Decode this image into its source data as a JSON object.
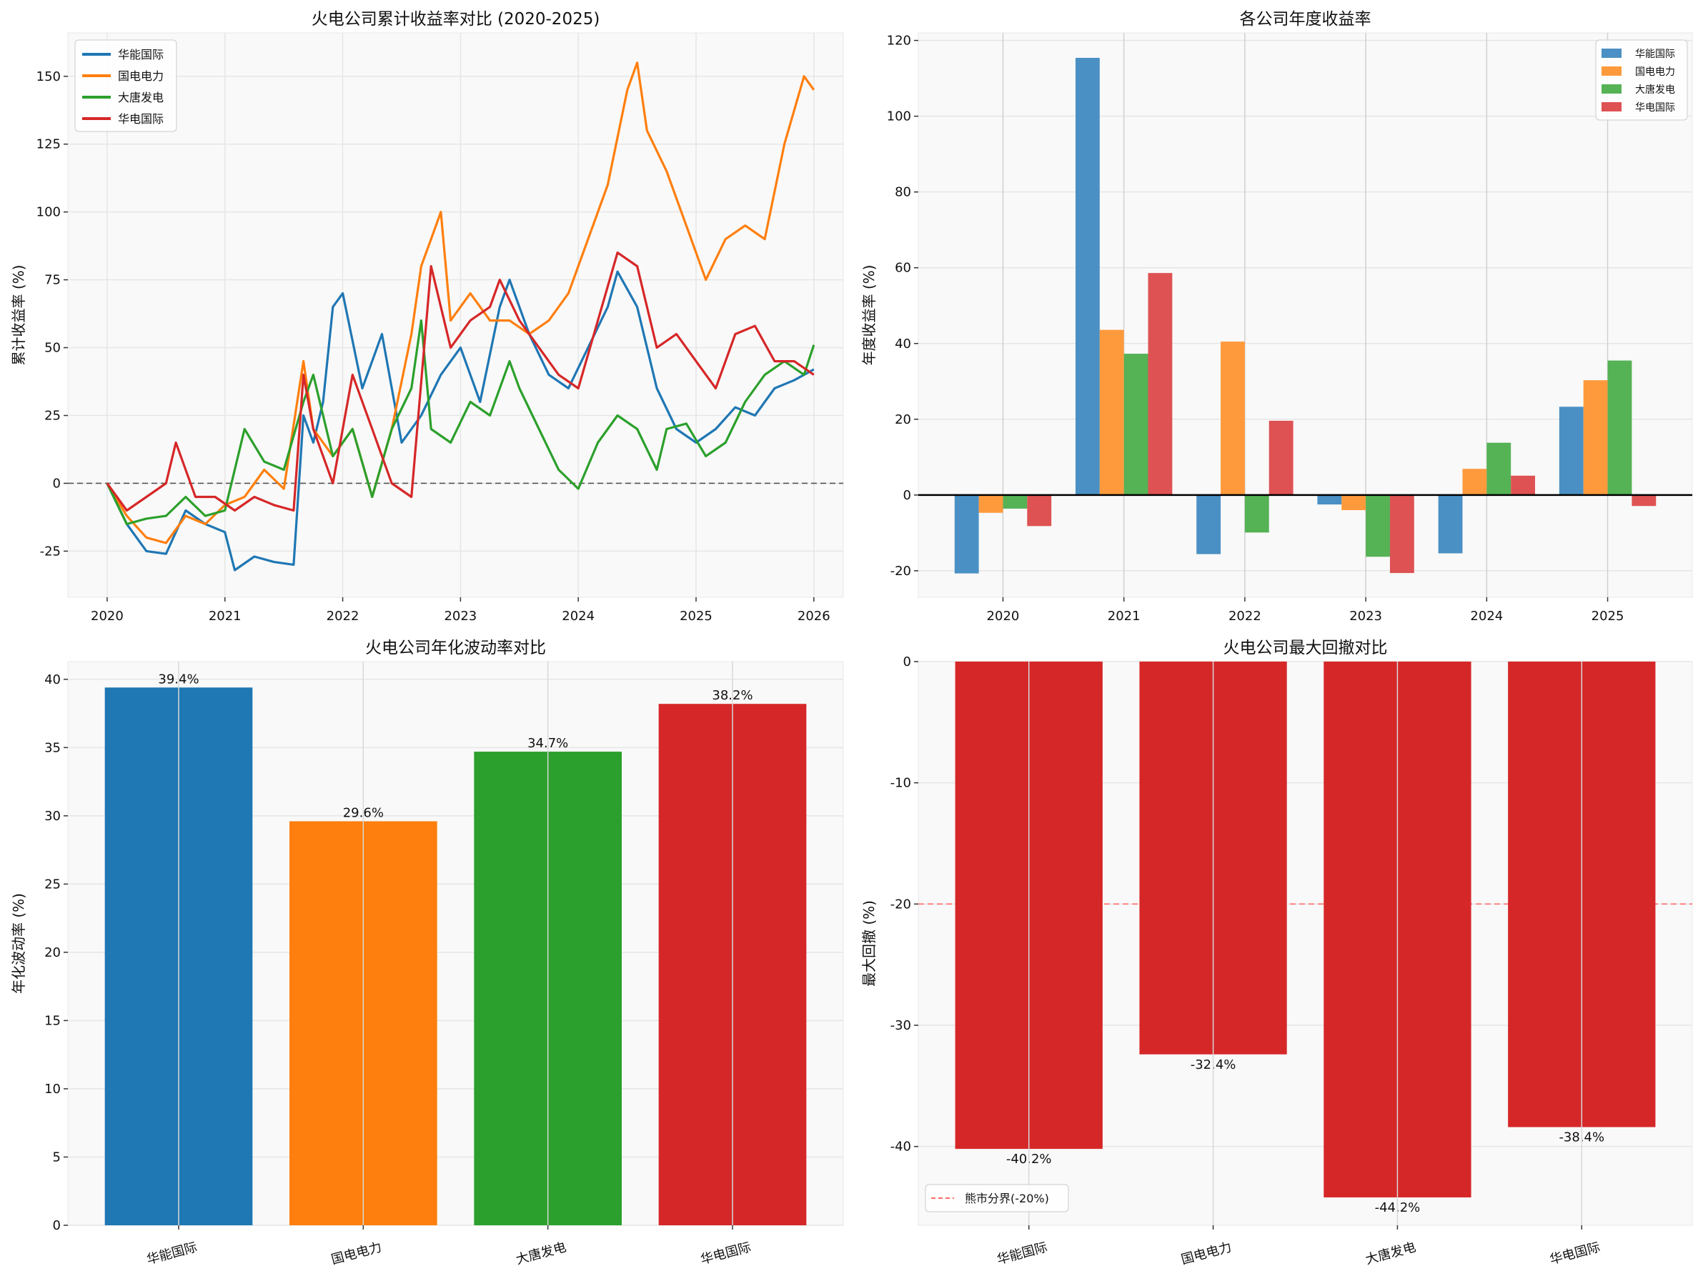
{
  "chart_data": [
    {
      "type": "line",
      "title": "火电公司累计收益率对比 (2020-2025)",
      "xlabel": "",
      "ylabel": "累计收益率 (%)",
      "xlim": [
        "2019-09",
        "2026-04"
      ],
      "ylim": [
        -42,
        166
      ],
      "xticks": [
        "2020",
        "2021",
        "2022",
        "2023",
        "2024",
        "2025",
        "2026"
      ],
      "yticks": [
        -25,
        0,
        25,
        50,
        75,
        100,
        125,
        150
      ],
      "grid": true,
      "legend_position": "top-left",
      "reference_line": {
        "y": 0,
        "style": "dashed",
        "color": "#555555"
      },
      "series": [
        {
          "name": "华能国际",
          "color": "#1f77b4",
          "points": [
            [
              "2020-01",
              0
            ],
            [
              "2020-03",
              -15
            ],
            [
              "2020-05",
              -25
            ],
            [
              "2020-07",
              -26
            ],
            [
              "2020-09",
              -10
            ],
            [
              "2020-11",
              -15
            ],
            [
              "2021-01",
              -18
            ],
            [
              "2021-02",
              -32
            ],
            [
              "2021-04",
              -27
            ],
            [
              "2021-06",
              -29
            ],
            [
              "2021-08",
              -30
            ],
            [
              "2021-09",
              25
            ],
            [
              "2021-10",
              15
            ],
            [
              "2021-11",
              30
            ],
            [
              "2021-12",
              65
            ],
            [
              "2022-01",
              70
            ],
            [
              "2022-03",
              35
            ],
            [
              "2022-05",
              55
            ],
            [
              "2022-07",
              15
            ],
            [
              "2022-09",
              25
            ],
            [
              "2022-11",
              40
            ],
            [
              "2023-01",
              50
            ],
            [
              "2023-03",
              30
            ],
            [
              "2023-05",
              65
            ],
            [
              "2023-06",
              75
            ],
            [
              "2023-08",
              55
            ],
            [
              "2023-10",
              40
            ],
            [
              "2023-12",
              35
            ],
            [
              "2024-02",
              50
            ],
            [
              "2024-04",
              65
            ],
            [
              "2024-05",
              78
            ],
            [
              "2024-07",
              65
            ],
            [
              "2024-09",
              35
            ],
            [
              "2024-11",
              20
            ],
            [
              "2025-01",
              15
            ],
            [
              "2025-03",
              20
            ],
            [
              "2025-05",
              28
            ],
            [
              "2025-07",
              25
            ],
            [
              "2025-09",
              35
            ],
            [
              "2025-11",
              38
            ],
            [
              "2026-01",
              42
            ]
          ]
        },
        {
          "name": "国电电力",
          "color": "#ff7f0e",
          "points": [
            [
              "2020-01",
              0
            ],
            [
              "2020-03",
              -12
            ],
            [
              "2020-05",
              -20
            ],
            [
              "2020-07",
              -22
            ],
            [
              "2020-09",
              -12
            ],
            [
              "2020-11",
              -15
            ],
            [
              "2021-01",
              -8
            ],
            [
              "2021-03",
              -5
            ],
            [
              "2021-05",
              5
            ],
            [
              "2021-07",
              -2
            ],
            [
              "2021-09",
              45
            ],
            [
              "2021-10",
              20
            ],
            [
              "2021-12",
              10
            ],
            [
              "2022-02",
              20
            ],
            [
              "2022-04",
              -5
            ],
            [
              "2022-06",
              20
            ],
            [
              "2022-08",
              55
            ],
            [
              "2022-09",
              80
            ],
            [
              "2022-10",
              90
            ],
            [
              "2022-11",
              100
            ],
            [
              "2022-12",
              60
            ],
            [
              "2023-02",
              70
            ],
            [
              "2023-04",
              60
            ],
            [
              "2023-06",
              60
            ],
            [
              "2023-08",
              55
            ],
            [
              "2023-10",
              60
            ],
            [
              "2023-12",
              70
            ],
            [
              "2024-02",
              90
            ],
            [
              "2024-04",
              110
            ],
            [
              "2024-06",
              145
            ],
            [
              "2024-07",
              155
            ],
            [
              "2024-08",
              130
            ],
            [
              "2024-10",
              115
            ],
            [
              "2024-12",
              95
            ],
            [
              "2025-02",
              75
            ],
            [
              "2025-04",
              90
            ],
            [
              "2025-06",
              95
            ],
            [
              "2025-08",
              90
            ],
            [
              "2025-10",
              125
            ],
            [
              "2025-12",
              150
            ],
            [
              "2026-01",
              145
            ]
          ]
        },
        {
          "name": "大唐发电",
          "color": "#2ca02c",
          "points": [
            [
              "2020-01",
              0
            ],
            [
              "2020-03",
              -15
            ],
            [
              "2020-05",
              -13
            ],
            [
              "2020-07",
              -12
            ],
            [
              "2020-09",
              -5
            ],
            [
              "2020-11",
              -12
            ],
            [
              "2021-01",
              -10
            ],
            [
              "2021-03",
              20
            ],
            [
              "2021-05",
              8
            ],
            [
              "2021-07",
              5
            ],
            [
              "2021-09",
              30
            ],
            [
              "2021-10",
              40
            ],
            [
              "2021-12",
              10
            ],
            [
              "2022-02",
              20
            ],
            [
              "2022-04",
              -5
            ],
            [
              "2022-06",
              20
            ],
            [
              "2022-08",
              35
            ],
            [
              "2022-09",
              60
            ],
            [
              "2022-10",
              20
            ],
            [
              "2022-12",
              15
            ],
            [
              "2023-02",
              30
            ],
            [
              "2023-04",
              25
            ],
            [
              "2023-06",
              45
            ],
            [
              "2023-07",
              35
            ],
            [
              "2023-09",
              20
            ],
            [
              "2023-11",
              5
            ],
            [
              "2024-01",
              -2
            ],
            [
              "2024-03",
              15
            ],
            [
              "2024-05",
              25
            ],
            [
              "2024-07",
              20
            ],
            [
              "2024-09",
              5
            ],
            [
              "2024-10",
              20
            ],
            [
              "2024-12",
              22
            ],
            [
              "2025-02",
              10
            ],
            [
              "2025-04",
              15
            ],
            [
              "2025-06",
              30
            ],
            [
              "2025-08",
              40
            ],
            [
              "2025-10",
              45
            ],
            [
              "2025-12",
              40
            ],
            [
              "2026-01",
              51
            ]
          ]
        },
        {
          "name": "华电国际",
          "color": "#d62728",
          "points": [
            [
              "2020-01",
              0
            ],
            [
              "2020-03",
              -10
            ],
            [
              "2020-05",
              -5
            ],
            [
              "2020-07",
              0
            ],
            [
              "2020-08",
              15
            ],
            [
              "2020-10",
              -5
            ],
            [
              "2020-12",
              -5
            ],
            [
              "2021-02",
              -10
            ],
            [
              "2021-04",
              -5
            ],
            [
              "2021-06",
              -8
            ],
            [
              "2021-08",
              -10
            ],
            [
              "2021-09",
              40
            ],
            [
              "2021-10",
              20
            ],
            [
              "2021-12",
              0
            ],
            [
              "2022-02",
              40
            ],
            [
              "2022-04",
              20
            ],
            [
              "2022-06",
              0
            ],
            [
              "2022-08",
              -5
            ],
            [
              "2022-10",
              80
            ],
            [
              "2022-12",
              50
            ],
            [
              "2023-02",
              60
            ],
            [
              "2023-04",
              65
            ],
            [
              "2023-05",
              75
            ],
            [
              "2023-07",
              60
            ],
            [
              "2023-09",
              50
            ],
            [
              "2023-11",
              40
            ],
            [
              "2024-01",
              35
            ],
            [
              "2024-03",
              60
            ],
            [
              "2024-05",
              85
            ],
            [
              "2024-07",
              80
            ],
            [
              "2024-09",
              50
            ],
            [
              "2024-11",
              55
            ],
            [
              "2025-01",
              45
            ],
            [
              "2025-03",
              35
            ],
            [
              "2025-05",
              55
            ],
            [
              "2025-07",
              58
            ],
            [
              "2025-09",
              45
            ],
            [
              "2025-11",
              45
            ],
            [
              "2026-01",
              40
            ]
          ]
        }
      ]
    },
    {
      "type": "bar",
      "title": "各公司年度收益率",
      "xlabel": "",
      "ylabel": "年度收益率 (%)",
      "ylim": [
        -27,
        122
      ],
      "yticks": [
        -20,
        0,
        20,
        40,
        60,
        80,
        100,
        120
      ],
      "grid": true,
      "legend_position": "top-right",
      "categories": [
        "2020",
        "2021",
        "2022",
        "2023",
        "2024",
        "2025"
      ],
      "series": [
        {
          "name": "华能国际",
          "color": "#4a90c4",
          "values": [
            -20.7,
            115.4,
            -15.6,
            -2.5,
            -15.4,
            23.3
          ]
        },
        {
          "name": "国电电力",
          "color": "#ff9a3c",
          "values": [
            -4.7,
            43.6,
            40.5,
            -4.0,
            6.9,
            30.3
          ]
        },
        {
          "name": "大唐发电",
          "color": "#55b255",
          "values": [
            -3.6,
            37.3,
            -9.9,
            -16.3,
            13.8,
            35.5
          ]
        },
        {
          "name": "华电国际",
          "color": "#de5253",
          "values": [
            -8.2,
            58.6,
            19.6,
            -20.6,
            5.1,
            -2.9
          ]
        }
      ]
    },
    {
      "type": "bar",
      "title": "火电公司年化波动率对比",
      "xlabel": "",
      "ylabel": "年化波动率 (%)",
      "ylim": [
        0,
        41.3
      ],
      "yticks": [
        0,
        5,
        10,
        15,
        20,
        25,
        30,
        35,
        40
      ],
      "grid": true,
      "categories": [
        "华能国际",
        "国电电力",
        "大唐发电",
        "华电国际"
      ],
      "colors": [
        "#1f77b4",
        "#ff7f0e",
        "#2ca02c",
        "#d62728"
      ],
      "values": [
        39.4,
        29.6,
        34.7,
        38.2
      ],
      "data_labels": [
        "39.4%",
        "29.6%",
        "34.7%",
        "38.2%"
      ]
    },
    {
      "type": "bar",
      "title": "火电公司最大回撤对比",
      "xlabel": "",
      "ylabel": "最大回撤 (%)",
      "ylim": [
        -46.5,
        0
      ],
      "yticks": [
        -40,
        -30,
        -20,
        -10,
        0
      ],
      "grid": true,
      "legend_position": "bottom-left",
      "categories": [
        "华能国际",
        "国电电力",
        "大唐发电",
        "华电国际"
      ],
      "color": "#d62728",
      "values": [
        -40.2,
        -32.4,
        -44.2,
        -38.4
      ],
      "data_labels": [
        "-40.2%",
        "-32.4%",
        "-44.2%",
        "-38.4%"
      ],
      "reference_line": {
        "y": -20,
        "label": "熊市分界(-20%)",
        "style": "dashed",
        "color": "#ff6b6b"
      }
    }
  ]
}
